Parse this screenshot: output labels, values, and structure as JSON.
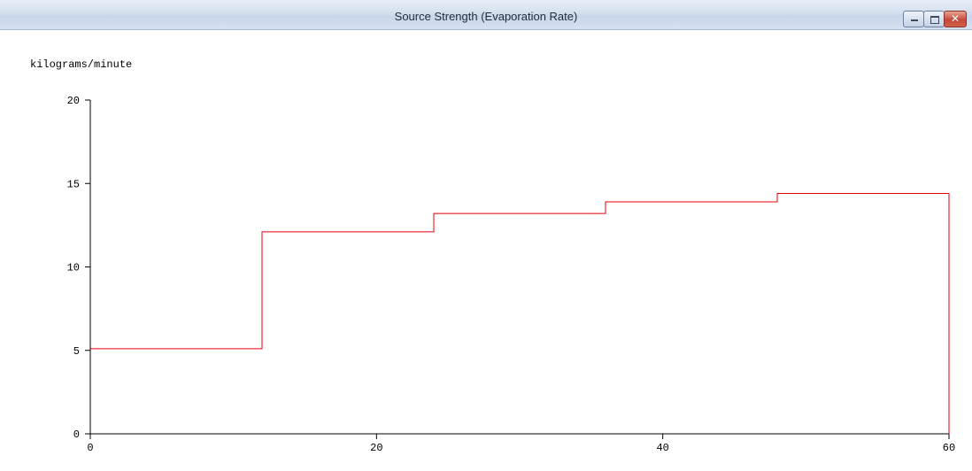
{
  "window": {
    "title": "Source Strength (Evaporation Rate)",
    "controls": [
      "minimize-icon",
      "maximize-icon",
      "close-icon"
    ]
  },
  "chart_data": {
    "type": "line",
    "step": true,
    "title": "",
    "xlabel": "",
    "ylabel": "kilograms/minute",
    "xlim": [
      0,
      60
    ],
    "ylim": [
      0,
      20
    ],
    "xticks": [
      0,
      20,
      40,
      60
    ],
    "yticks": [
      0,
      5,
      10,
      15,
      20
    ],
    "grid": false,
    "line_color": "#e8000b",
    "series": [
      {
        "x": [
          0,
          12,
          24,
          36,
          48,
          60
        ],
        "y": [
          5.1,
          12.1,
          13.2,
          13.9,
          14.4,
          0
        ]
      }
    ]
  }
}
